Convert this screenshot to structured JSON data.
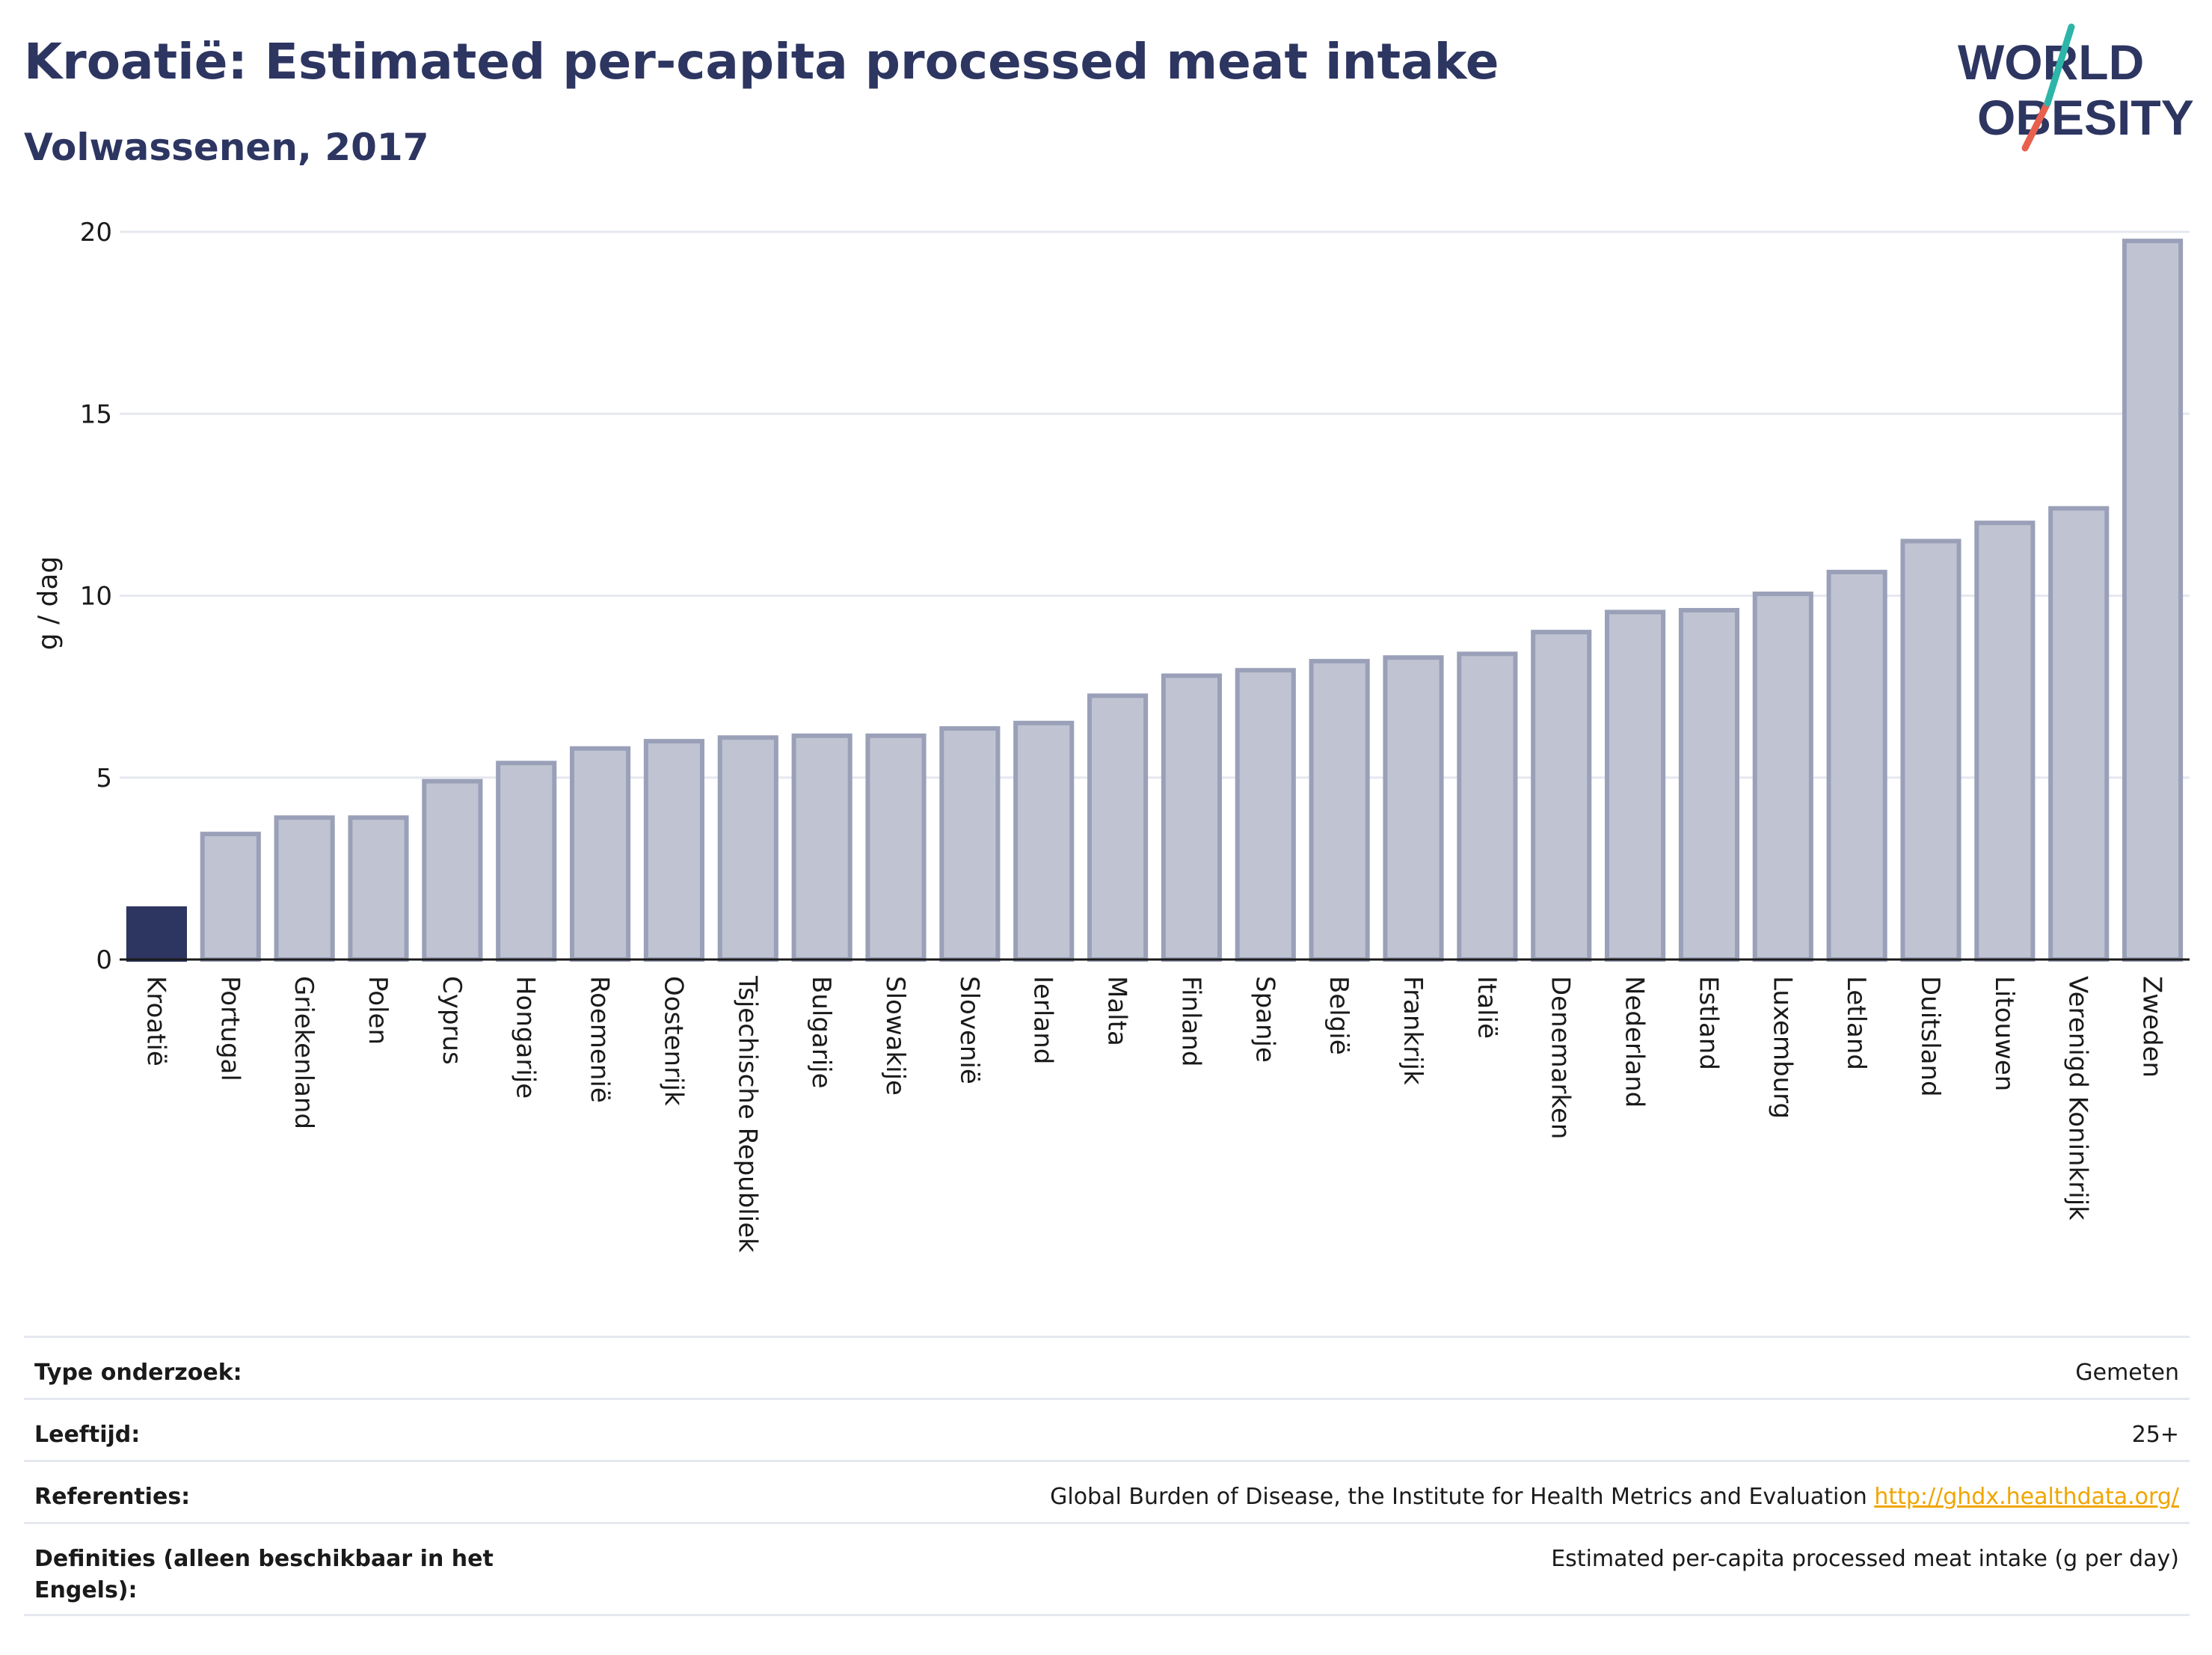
{
  "title": "Kroatië: Estimated per-capita processed meat intake",
  "subtitle": "Volwassenen, 2017",
  "logo": {
    "line1": "WORLD",
    "line2": "OBESITY",
    "accent_colors": [
      "#2cb5a8",
      "#e8614d"
    ]
  },
  "colors": {
    "highlight": "#2d3561",
    "bar_fill": "#c0c4d2",
    "bar_stroke": "#9aa0b8",
    "grid": "#e6e8ef"
  },
  "chart_data": {
    "type": "bar",
    "ylabel": "g / dag",
    "ylim": [
      0,
      20
    ],
    "yticks": [
      "0",
      "5",
      "10",
      "15",
      "20"
    ],
    "highlight_category": "Kroatië",
    "categories": [
      "Kroatië",
      "Portugal",
      "Griekenland",
      "Polen",
      "Cyprus",
      "Hongarije",
      "Roemenië",
      "Oostenrijk",
      "Tsjechische Republiek",
      "Bulgarije",
      "Slowakije",
      "Slovenië",
      "Ierland",
      "Malta",
      "Finland",
      "Spanje",
      "België",
      "Frankrijk",
      "Italië",
      "Denemarken",
      "Nederland",
      "Estland",
      "Luxemburg",
      "Letland",
      "Duitsland",
      "Litouwen",
      "Verenigd Koninkrijk",
      "Zweden"
    ],
    "values": [
      1.4,
      3.45,
      3.9,
      3.9,
      4.9,
      5.4,
      5.8,
      6.0,
      6.1,
      6.15,
      6.15,
      6.35,
      6.5,
      7.25,
      7.8,
      7.95,
      8.2,
      8.3,
      8.4,
      9.0,
      9.55,
      9.6,
      10.05,
      10.65,
      11.5,
      12.0,
      12.4,
      19.75
    ]
  },
  "info": {
    "rows": [
      {
        "label": "Type onderzoek:",
        "value": "Gemeten"
      },
      {
        "label": "Leeftijd:",
        "value": "25+"
      },
      {
        "label": "Referenties:",
        "value": "Global Burden of Disease, the Institute for Health Metrics and Evaluation",
        "link": "http://ghdx.healthdata.org/"
      },
      {
        "label": "Definities (alleen beschikbaar in het Engels):",
        "value": "Estimated per-capita processed meat intake (g per day)"
      }
    ]
  }
}
